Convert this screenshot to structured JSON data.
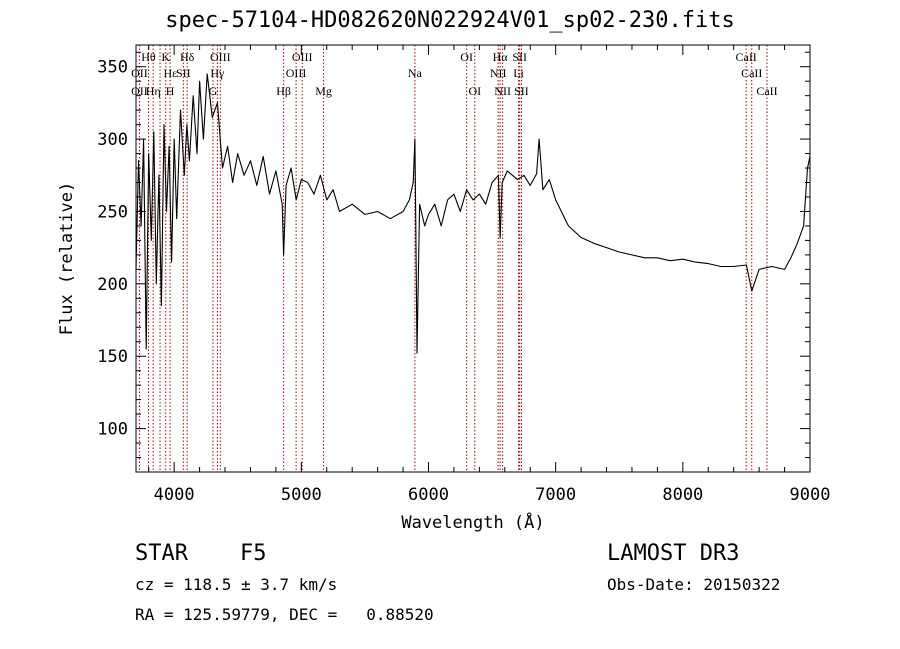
{
  "chart_data": {
    "type": "line",
    "title": "spec-57104-HD082620N022924V01_sp02-230.fits",
    "xlabel": "Wavelength (Å)",
    "ylabel": "Flux (relative)",
    "xlim": [
      3700,
      9000
    ],
    "ylim": [
      70,
      365
    ],
    "xticks": [
      4000,
      5000,
      6000,
      7000,
      8000,
      9000
    ],
    "yticks": [
      100,
      150,
      200,
      250,
      300,
      350
    ],
    "series": [
      {
        "name": "flux",
        "x": [
          3700,
          3720,
          3740,
          3760,
          3780,
          3800,
          3820,
          3840,
          3860,
          3880,
          3900,
          3920,
          3940,
          3960,
          3980,
          4000,
          4020,
          4050,
          4080,
          4100,
          4120,
          4150,
          4180,
          4200,
          4230,
          4260,
          4300,
          4340,
          4380,
          4420,
          4460,
          4500,
          4550,
          4600,
          4650,
          4700,
          4750,
          4800,
          4850,
          4861,
          4880,
          4920,
          4960,
          5000,
          5050,
          5100,
          5150,
          5200,
          5250,
          5300,
          5400,
          5500,
          5600,
          5700,
          5800,
          5850,
          5880,
          5893,
          5900,
          5910,
          5930,
          5970,
          6000,
          6050,
          6100,
          6150,
          6200,
          6250,
          6300,
          6350,
          6400,
          6450,
          6500,
          6550,
          6563,
          6580,
          6620,
          6700,
          6750,
          6800,
          6850,
          6870,
          6900,
          6950,
          7000,
          7100,
          7200,
          7300,
          7400,
          7500,
          7600,
          7700,
          7800,
          7900,
          8000,
          8100,
          8200,
          8300,
          8400,
          8500,
          8542,
          8600,
          8700,
          8800,
          8850,
          8900,
          8950,
          8980,
          9000
        ],
        "values": [
          210,
          285,
          240,
          300,
          155,
          290,
          230,
          305,
          200,
          275,
          185,
          310,
          250,
          295,
          215,
          300,
          245,
          320,
          275,
          310,
          285,
          330,
          290,
          340,
          300,
          345,
          315,
          325,
          280,
          295,
          270,
          290,
          275,
          285,
          268,
          288,
          262,
          278,
          255,
          220,
          268,
          280,
          258,
          272,
          270,
          262,
          275,
          258,
          265,
          250,
          255,
          248,
          250,
          245,
          250,
          258,
          270,
          300,
          240,
          152,
          255,
          240,
          248,
          255,
          240,
          258,
          262,
          250,
          265,
          258,
          262,
          255,
          270,
          275,
          232,
          270,
          278,
          272,
          275,
          268,
          276,
          300,
          265,
          272,
          258,
          240,
          232,
          228,
          225,
          222,
          220,
          218,
          218,
          216,
          217,
          215,
          214,
          212,
          212,
          213,
          195,
          210,
          212,
          210,
          218,
          228,
          240,
          280,
          288
        ]
      }
    ],
    "line_annotations": [
      {
        "label": "Hθ",
        "wl": 3798,
        "row": 1
      },
      {
        "label": "OII",
        "wl": 3727,
        "row": 2
      },
      {
        "label": "OII",
        "wl": 3727,
        "row": 3
      },
      {
        "label": "Hη",
        "wl": 3835,
        "row": 3
      },
      {
        "label": "K",
        "wl": 3934,
        "row": 1
      },
      {
        "label": "Hε",
        "wl": 3970,
        "row": 2
      },
      {
        "label": "H",
        "wl": 3968,
        "row": 3
      },
      {
        "label": "Hδ",
        "wl": 4102,
        "row": 1
      },
      {
        "label": "SII",
        "wl": 4072,
        "row": 2
      },
      {
        "label": "OIII",
        "wl": 4363,
        "row": 1
      },
      {
        "label": "Hγ",
        "wl": 4340,
        "row": 2
      },
      {
        "label": "G",
        "wl": 4305,
        "row": 3
      },
      {
        "label": "Hβ",
        "wl": 4861,
        "row": 3
      },
      {
        "label": "OIII",
        "wl": 5007,
        "row": 1
      },
      {
        "label": "OIII",
        "wl": 4959,
        "row": 2
      },
      {
        "label": "Mg",
        "wl": 5175,
        "row": 3
      },
      {
        "label": "Na",
        "wl": 5893,
        "row": 2
      },
      {
        "label": "OI",
        "wl": 6300,
        "row": 1
      },
      {
        "label": "OI",
        "wl": 6364,
        "row": 3
      },
      {
        "label": "Hα",
        "wl": 6563,
        "row": 1
      },
      {
        "label": "NII",
        "wl": 6548,
        "row": 2
      },
      {
        "label": "NII",
        "wl": 6583,
        "row": 3
      },
      {
        "label": "SII",
        "wl": 6717,
        "row": 1
      },
      {
        "label": "Li",
        "wl": 6708,
        "row": 2
      },
      {
        "label": "SII",
        "wl": 6731,
        "row": 3
      },
      {
        "label": "CaII",
        "wl": 8498,
        "row": 1
      },
      {
        "label": "CaII",
        "wl": 8542,
        "row": 2
      },
      {
        "label": "CaII",
        "wl": 8662,
        "row": 3
      }
    ],
    "line_markers": [
      3727,
      3798,
      3835,
      3889,
      3934,
      3968,
      4072,
      4102,
      4305,
      4340,
      4363,
      4861,
      4959,
      5007,
      5175,
      5893,
      6300,
      6364,
      6548,
      6563,
      6583,
      6708,
      6717,
      6731,
      8498,
      8542,
      8662
    ],
    "colors": {
      "spectrum": "#000000",
      "markers": "#b00000",
      "frame": "#000000"
    }
  },
  "info": {
    "class": "STAR",
    "subclass": "F5",
    "survey": "LAMOST DR3",
    "cz": "cz = 118.5 ± 3.7 km/s",
    "obs_date": "Obs-Date: 20150322",
    "coords": "RA = 125.59779, DEC =   0.88520"
  }
}
